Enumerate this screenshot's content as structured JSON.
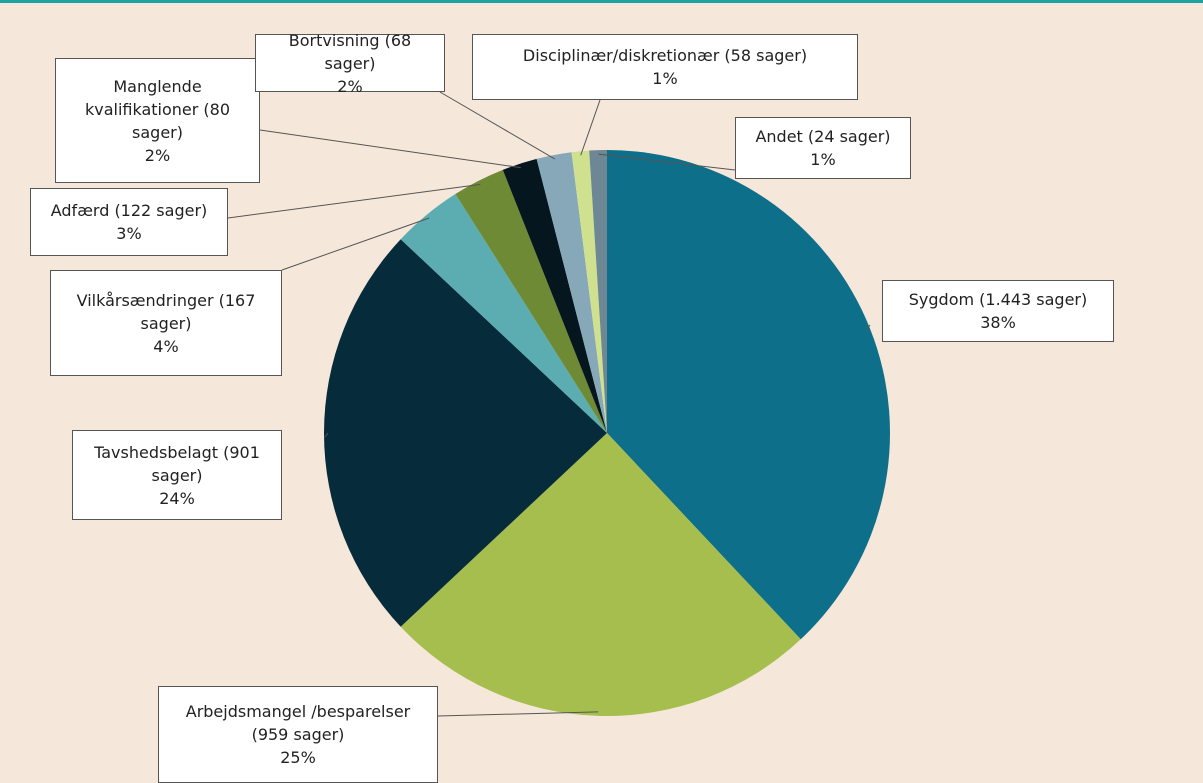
{
  "chart_data": {
    "type": "pie",
    "categories": [
      "Sygdom (1.443 sager)",
      "Arbejdsmangel /besparelser (959 sager)",
      "Tavshedsbelagt (901 sager)",
      "Vilkårsændringer (167 sager)",
      "Adfærd (122 sager)",
      "Manglende kvalifikationer (80 sager)",
      "Bortvisning (68 sager)",
      "Disciplinær/diskretionær (58 sager)",
      "Andet (24 sager)"
    ],
    "values": [
      38,
      25,
      24,
      4,
      3,
      2,
      2,
      1,
      1
    ],
    "value_labels": [
      "38%",
      "25%",
      "24%",
      "4%",
      "3%",
      "2%",
      "2%",
      "1%",
      "1%"
    ],
    "colors": [
      "#0e6f8a",
      "#a6be4d",
      "#062b3a",
      "#5badb1",
      "#6e8a35",
      "#06161e",
      "#86a8b9",
      "#cfe18f",
      "#6d8794"
    ]
  }
}
